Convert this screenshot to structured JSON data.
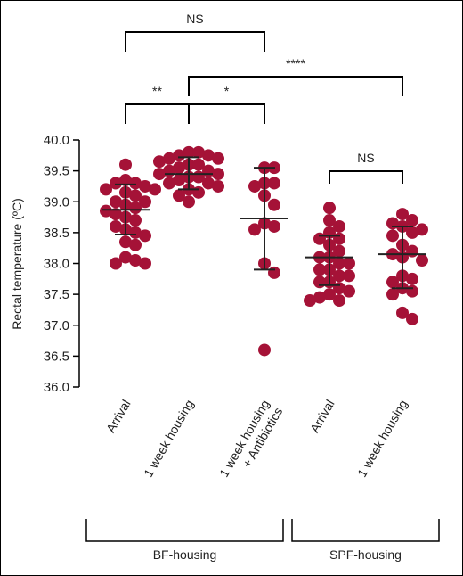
{
  "chart_data": {
    "type": "scatter",
    "ylabel": "Rectal temperature (ºC)",
    "ylim": [
      36.0,
      40.0
    ],
    "yticks": [
      "40.0",
      "39.5",
      "39.0",
      "38.5",
      "38.0",
      "37.5",
      "37.0",
      "36.5",
      "36.0"
    ],
    "dot_color": "#a51237",
    "categories": [
      "Arrival",
      "1 week housing",
      "1 week housing\n+ Antibiotics",
      "Arrival",
      "1 week housing"
    ],
    "category_lines": [
      [
        "Arrival"
      ],
      [
        "1 week housing"
      ],
      [
        "1 week housing",
        "+ Antibiotics"
      ],
      [
        "Arrival"
      ],
      [
        "1 week housing"
      ]
    ],
    "series": [
      {
        "category": "Arrival",
        "group": "BF-housing",
        "mean": 38.87,
        "sd_upper": 39.28,
        "sd_lower": 38.47,
        "values": [
          39.6,
          39.35,
          39.3,
          39.3,
          39.25,
          39.2,
          39.2,
          39.15,
          39.1,
          39.0,
          39.0,
          38.95,
          38.9,
          38.85,
          38.8,
          38.75,
          38.7,
          38.6,
          38.55,
          38.5,
          38.45,
          38.35,
          38.3,
          38.1,
          38.05,
          38.0,
          38.0
        ]
      },
      {
        "category": "1 week housing",
        "group": "BF-housing",
        "mean": 39.45,
        "sd_upper": 39.72,
        "sd_lower": 39.2,
        "values": [
          39.8,
          39.8,
          39.75,
          39.75,
          39.7,
          39.7,
          39.65,
          39.6,
          39.6,
          39.55,
          39.5,
          39.5,
          39.45,
          39.45,
          39.4,
          39.4,
          39.35,
          39.3,
          39.3,
          39.25,
          39.2,
          39.15,
          39.1,
          39.0
        ]
      },
      {
        "category": "1 week housing + Antibiotics",
        "group": "BF-housing",
        "mean": 38.73,
        "sd_upper": 39.55,
        "sd_lower": 37.9,
        "values": [
          39.55,
          39.55,
          39.3,
          39.3,
          39.25,
          39.1,
          38.95,
          38.65,
          38.6,
          38.55,
          38.0,
          37.85,
          36.6
        ]
      },
      {
        "category": "Arrival",
        "group": "SPF-housing",
        "mean": 38.1,
        "sd_upper": 38.45,
        "sd_lower": 37.65,
        "values": [
          38.9,
          38.7,
          38.6,
          38.5,
          38.4,
          38.4,
          38.3,
          38.2,
          38.1,
          38.1,
          38.0,
          38.0,
          37.9,
          37.9,
          37.8,
          37.8,
          37.7,
          37.7,
          37.6,
          37.55,
          37.5,
          37.45,
          37.4,
          37.4
        ]
      },
      {
        "category": "1 week housing",
        "group": "SPF-housing",
        "mean": 38.15,
        "sd_upper": 38.6,
        "sd_lower": 37.6,
        "values": [
          38.8,
          38.7,
          38.65,
          38.6,
          38.55,
          38.5,
          38.45,
          38.3,
          38.2,
          38.15,
          38.1,
          38.05,
          37.8,
          37.75,
          37.7,
          37.6,
          37.55,
          37.5,
          37.2,
          37.1
        ]
      }
    ],
    "significance": [
      {
        "from": 1,
        "to": 3,
        "label": "NS"
      },
      {
        "from": 1,
        "to": 2,
        "label": "**"
      },
      {
        "from": 2,
        "to": 3,
        "label": "*"
      },
      {
        "from": 2,
        "to": 5,
        "label": "****"
      },
      {
        "from": 4,
        "to": 5,
        "label": "NS"
      }
    ],
    "groups": [
      {
        "label": "BF-housing",
        "from": 1,
        "to": 3
      },
      {
        "label": "SPF-housing",
        "from": 4,
        "to": 5
      }
    ]
  }
}
